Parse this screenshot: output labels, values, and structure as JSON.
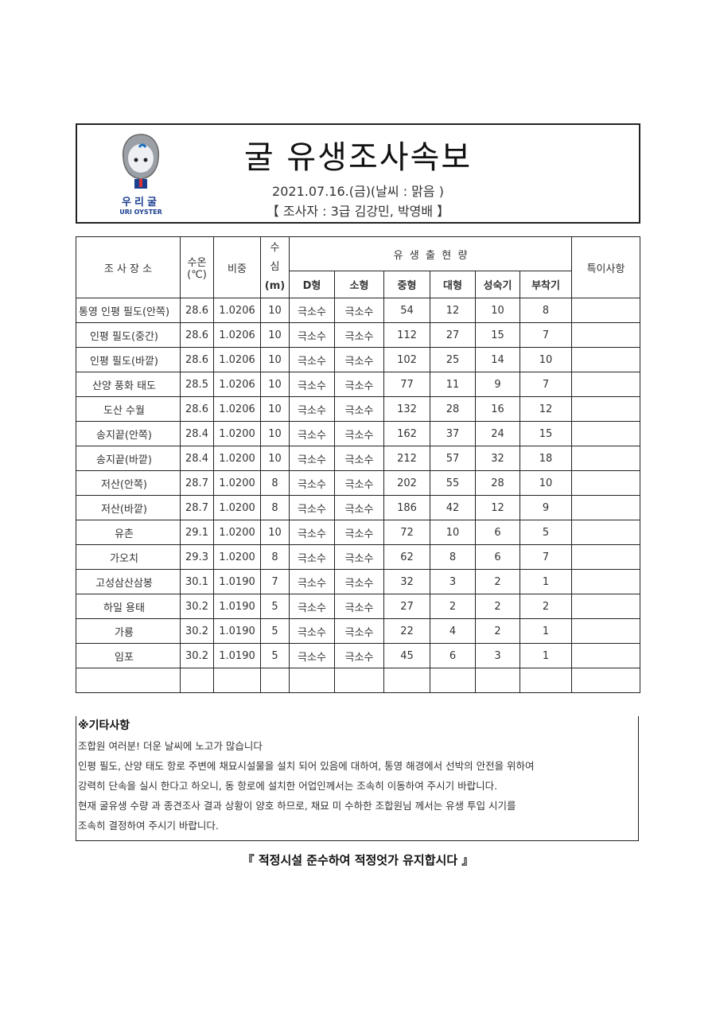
{
  "logo": {
    "korean": "우리굴",
    "english": "URI OYSTER"
  },
  "header": {
    "title": "굴 유생조사속보",
    "date_weather": "2021.07.16.(금)(날씨 : 맑음 )",
    "surveyors": "【 조사자 : 3급 김강민, 박영배 】"
  },
  "table": {
    "headers": {
      "location": "조 사 장 소",
      "water_temp": "수온",
      "water_temp_unit": "(℃)",
      "specific_gravity": "비중",
      "depth": "수",
      "depth2": "심",
      "depth_unit": "(m)",
      "larvae_group": "유  생  출  현  량",
      "remarks": "특이사항"
    },
    "sub_headers": [
      "D형",
      "소형",
      "중형",
      "대형",
      "성숙기",
      "부착기"
    ],
    "rows": [
      {
        "location": "통영 인평 필도(안쪽)",
        "temp": "28.6",
        "sg": "1.0206",
        "depth": "10",
        "d": "극소수",
        "small": "극소수",
        "medium": "54",
        "large": "12",
        "mature": "10",
        "attach": "8",
        "remarks": ""
      },
      {
        "location": "인평 필도(중간)",
        "temp": "28.6",
        "sg": "1.0206",
        "depth": "10",
        "d": "극소수",
        "small": "극소수",
        "medium": "112",
        "large": "27",
        "mature": "15",
        "attach": "7",
        "remarks": ""
      },
      {
        "location": "인평 필도(바깥)",
        "temp": "28.6",
        "sg": "1.0206",
        "depth": "10",
        "d": "극소수",
        "small": "극소수",
        "medium": "102",
        "large": "25",
        "mature": "14",
        "attach": "10",
        "remarks": ""
      },
      {
        "location": "산양 풍화 태도",
        "temp": "28.5",
        "sg": "1.0206",
        "depth": "10",
        "d": "극소수",
        "small": "극소수",
        "medium": "77",
        "large": "11",
        "mature": "9",
        "attach": "7",
        "remarks": ""
      },
      {
        "location": "도산 수월",
        "temp": "28.6",
        "sg": "1.0206",
        "depth": "10",
        "d": "극소수",
        "small": "극소수",
        "medium": "132",
        "large": "28",
        "mature": "16",
        "attach": "12",
        "remarks": ""
      },
      {
        "location": "송지끝(안쪽)",
        "temp": "28.4",
        "sg": "1.0200",
        "depth": "10",
        "d": "극소수",
        "small": "극소수",
        "medium": "162",
        "large": "37",
        "mature": "24",
        "attach": "15",
        "remarks": ""
      },
      {
        "location": "송지끝(바깥)",
        "temp": "28.4",
        "sg": "1.0200",
        "depth": "10",
        "d": "극소수",
        "small": "극소수",
        "medium": "212",
        "large": "57",
        "mature": "32",
        "attach": "18",
        "remarks": ""
      },
      {
        "location": "저산(안쪽)",
        "temp": "28.7",
        "sg": "1.0200",
        "depth": "8",
        "d": "극소수",
        "small": "극소수",
        "medium": "202",
        "large": "55",
        "mature": "28",
        "attach": "10",
        "remarks": ""
      },
      {
        "location": "저산(바깥)",
        "temp": "28.7",
        "sg": "1.0200",
        "depth": "8",
        "d": "극소수",
        "small": "극소수",
        "medium": "186",
        "large": "42",
        "mature": "12",
        "attach": "9",
        "remarks": ""
      },
      {
        "location": "유촌",
        "temp": "29.1",
        "sg": "1.0200",
        "depth": "10",
        "d": "극소수",
        "small": "극소수",
        "medium": "72",
        "large": "10",
        "mature": "6",
        "attach": "5",
        "remarks": ""
      },
      {
        "location": "가오치",
        "temp": "29.3",
        "sg": "1.0200",
        "depth": "8",
        "d": "극소수",
        "small": "극소수",
        "medium": "62",
        "large": "8",
        "mature": "6",
        "attach": "7",
        "remarks": ""
      },
      {
        "location": "고성삼산삼봉",
        "temp": "30.1",
        "sg": "1.0190",
        "depth": "7",
        "d": "극소수",
        "small": "극소수",
        "medium": "32",
        "large": "3",
        "mature": "2",
        "attach": "1",
        "remarks": ""
      },
      {
        "location": "하일 용태",
        "temp": "30.2",
        "sg": "1.0190",
        "depth": "5",
        "d": "극소수",
        "small": "극소수",
        "medium": "27",
        "large": "2",
        "mature": "2",
        "attach": "2",
        "remarks": ""
      },
      {
        "location": "가룡",
        "temp": "30.2",
        "sg": "1.0190",
        "depth": "5",
        "d": "극소수",
        "small": "극소수",
        "medium": "22",
        "large": "4",
        "mature": "2",
        "attach": "1",
        "remarks": ""
      },
      {
        "location": "임포",
        "temp": "30.2",
        "sg": "1.0190",
        "depth": "5",
        "d": "극소수",
        "small": "극소수",
        "medium": "45",
        "large": "6",
        "mature": "3",
        "attach": "1",
        "remarks": ""
      },
      {
        "location": "",
        "temp": "",
        "sg": "",
        "depth": "",
        "d": "",
        "small": "",
        "medium": "",
        "large": "",
        "mature": "",
        "attach": "",
        "remarks": ""
      }
    ]
  },
  "notes": {
    "heading": "※기타사항",
    "lines": [
      "조합원 여러분! 더운 날씨에 노고가 많습니다",
      "인평 필도, 산양 태도 항로 주변에 채묘시설물을  설치 되어 있음에 대하여, 통영 해경에서 선박의 안전을 위하여",
      "강력히 단속을 실시 한다고 하오니, 동 항로에 설치한 어업인께서는 조속히 이동하여 주시기 바랍니다.",
      "현재 굴유생 수량 과 종견조사 결과 상황이 양호 하므로, 채묘 미 수하한 조합원님 께서는 유생 투입 시기를",
      "조속히 결정하여 주시기 바랍니다."
    ]
  },
  "footer": "『 적정시설 준수하여 적정엇가 유지합시다 』"
}
